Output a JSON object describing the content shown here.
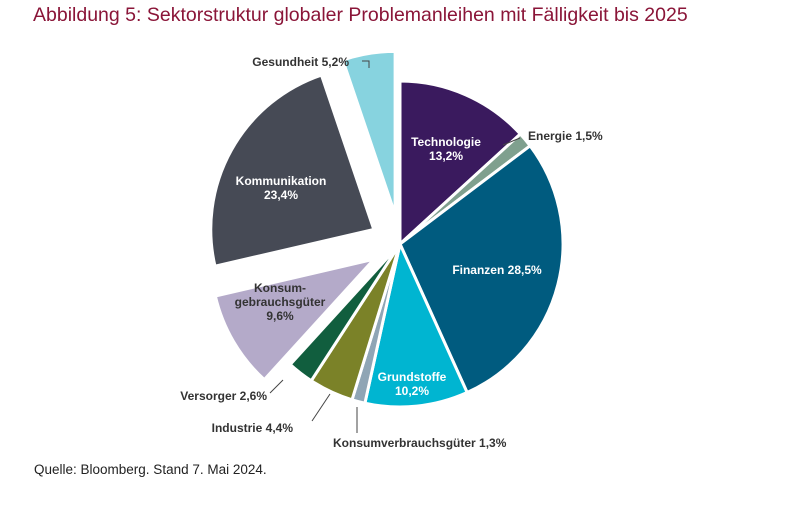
{
  "title": "Abbildung 5: Sektorstruktur globaler Problemanleihen mit Fälligkeit bis 2025",
  "source": "Quelle: Bloomberg. Stand 7. Mai 2024.",
  "chart_data": {
    "type": "pie",
    "title": "Abbildung 5: Sektorstruktur globaler Problemanleihen mit Fälligkeit bis 2025",
    "unit": "%",
    "slices": [
      {
        "name": "Technologie",
        "value": 13.2,
        "label": [
          "Technologie",
          "13,2%"
        ],
        "color": "#3a1a5e",
        "text_color": "#ffffff",
        "exploded": false
      },
      {
        "name": "Energie",
        "value": 1.5,
        "label": [
          "Energie 1,5%"
        ],
        "color": "#7fa08e",
        "text_color": "#333333",
        "exploded": false
      },
      {
        "name": "Finanzen",
        "value": 28.5,
        "label": [
          "Finanzen 28,5%"
        ],
        "color": "#005b7f",
        "text_color": "#ffffff",
        "exploded": false
      },
      {
        "name": "Grundstoffe",
        "value": 10.2,
        "label": [
          "Grundstoffe",
          "10,2%"
        ],
        "color": "#00b5d1",
        "text_color": "#ffffff",
        "exploded": false
      },
      {
        "name": "Konsumverbrauchsgüter",
        "value": 1.3,
        "label": [
          "Konsumverbrauchsgüter 1,3%"
        ],
        "color": "#8fa5b5",
        "text_color": "#333333",
        "exploded": false
      },
      {
        "name": "Industrie",
        "value": 4.4,
        "label": [
          "Industrie 4,4%"
        ],
        "color": "#7b8228",
        "text_color": "#333333",
        "exploded": false
      },
      {
        "name": "Versorger",
        "value": 2.6,
        "label": [
          "Versorger 2,6%"
        ],
        "color": "#115e3e",
        "text_color": "#333333",
        "exploded": false
      },
      {
        "name": "Konsumgebrauchsgüter",
        "value": 9.6,
        "label": [
          "Konsum-",
          "gebrauchsgüter",
          "9,6%"
        ],
        "color": "#b4aac9",
        "text_color": "#333333",
        "exploded": true
      },
      {
        "name": "Kommunikation",
        "value": 23.4,
        "label": [
          "Kommunikation",
          "23,4%"
        ],
        "color": "#464a55",
        "text_color": "#ffffff",
        "exploded": true
      },
      {
        "name": "Gesundheit",
        "value": 5.2,
        "label": [
          "Gesundheit 5,2%"
        ],
        "color": "#87d3df",
        "text_color": "#333333",
        "exploded": true
      }
    ]
  }
}
